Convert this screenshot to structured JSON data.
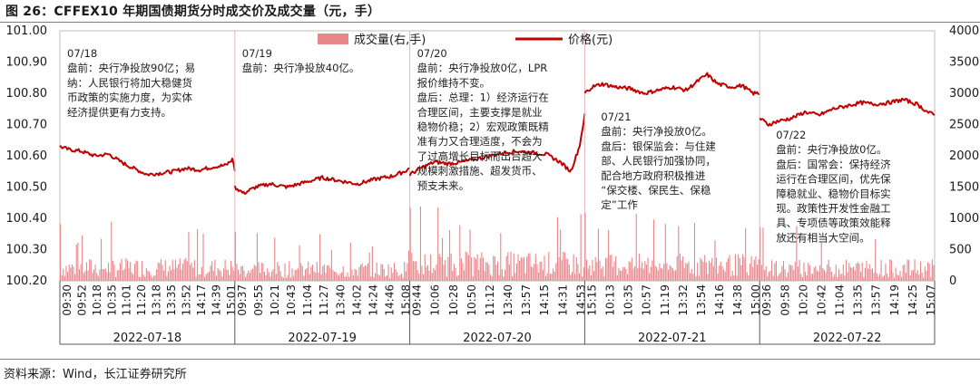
{
  "title": "图 26：CFFEX10 年期国债期货分时成交价及成交量（元，手）",
  "source": "资料来源：Wind，长江证券研究所",
  "colors": {
    "price": "#c00000",
    "volume": "#e8868a",
    "axis": "#595959"
  },
  "chart_data": {
    "type": "line+bar",
    "legend": {
      "position": "top-center",
      "items": [
        "成交量(右,手)",
        "价格(元)"
      ]
    },
    "left_axis": {
      "ticks": [
        "101.00",
        "100.90",
        "100.80",
        "100.70",
        "100.60",
        "100.50",
        "100.40",
        "100.30",
        "100.20"
      ],
      "range": [
        100.2,
        101.0
      ]
    },
    "right_axis": {
      "ticks": [
        "4000",
        "3500",
        "3000",
        "2500",
        "2000",
        "1500",
        "1000",
        "500",
        "0"
      ],
      "range": [
        0,
        4000
      ]
    },
    "days": [
      {
        "date": "2022-07-18",
        "times": [
          "09:30",
          "09:52",
          "10:18",
          "10:35",
          "11:01",
          "11:20",
          "13:18",
          "13:35",
          "13:52",
          "14:17",
          "14:39",
          "15:01"
        ],
        "price_points": [
          [
            0,
            100.63
          ],
          [
            0.05,
            100.62
          ],
          [
            0.12,
            100.615
          ],
          [
            0.2,
            100.6
          ],
          [
            0.28,
            100.605
          ],
          [
            0.35,
            100.58
          ],
          [
            0.42,
            100.56
          ],
          [
            0.5,
            100.54
          ],
          [
            0.58,
            100.545
          ],
          [
            0.65,
            100.55
          ],
          [
            0.72,
            100.56
          ],
          [
            0.8,
            100.555
          ],
          [
            0.88,
            100.565
          ],
          [
            0.95,
            100.57
          ],
          [
            0.99,
            100.59
          ],
          [
            1.0,
            100.55
          ]
        ],
        "volume_level": 350,
        "annotation": [
          "07/18",
          "盘前：央行净投放90亿；易",
          "纳：人民银行将加大稳健货",
          "币政策的实施力度，为实体",
          "经济提供更有力支持。"
        ]
      },
      {
        "date": "2022-07-19",
        "times": [
          "09:37",
          "09:55",
          "10:21",
          "10:43",
          "11:04",
          "11:27",
          "13:40",
          "14:02",
          "14:24",
          "14:46",
          "15:08"
        ],
        "price_points": [
          [
            0,
            100.5
          ],
          [
            0.05,
            100.48
          ],
          [
            0.12,
            100.5
          ],
          [
            0.2,
            100.51
          ],
          [
            0.3,
            100.5
          ],
          [
            0.4,
            100.515
          ],
          [
            0.5,
            100.53
          ],
          [
            0.6,
            100.52
          ],
          [
            0.7,
            100.51
          ],
          [
            0.8,
            100.525
          ],
          [
            0.9,
            100.535
          ],
          [
            0.97,
            100.55
          ],
          [
            1.0,
            100.56
          ]
        ],
        "volume_level": 300,
        "annotation": [
          "07/19",
          "盘前：央行净投放40亿。"
        ]
      },
      {
        "date": "2022-07-20",
        "times": [
          "09:44",
          "10:06",
          "10:28",
          "10:50",
          "11:12",
          "13:40",
          "13:57",
          "14:15",
          "14:31",
          "14:53"
        ],
        "price_points": [
          [
            0,
            100.54
          ],
          [
            0.06,
            100.56
          ],
          [
            0.14,
            100.58
          ],
          [
            0.22,
            100.575
          ],
          [
            0.3,
            100.58
          ],
          [
            0.38,
            100.59
          ],
          [
            0.46,
            100.6
          ],
          [
            0.54,
            100.61
          ],
          [
            0.62,
            100.615
          ],
          [
            0.7,
            100.61
          ],
          [
            0.78,
            100.605
          ],
          [
            0.86,
            100.58
          ],
          [
            0.92,
            100.55
          ],
          [
            0.97,
            100.63
          ],
          [
            1.0,
            100.73
          ]
        ],
        "volume_level": 450,
        "annotation": [
          "07/20",
          "盘前：央行净投放0亿，LPR",
          "报价维持不变。",
          "盘后：总理：1）经济运行在",
          "合理区间，主要支撑是就业",
          "稳物价稳；2）宏观政策既精",
          "准有力又合理适度，不会为",
          "了过高增长目标而出台超大",
          "规模刺激措施、超发货币、",
          "预支未来。"
        ]
      },
      {
        "date": "2022-07-21",
        "times": [
          "15:15",
          "10:13",
          "10:35",
          "10:57",
          "11:19",
          "13:32",
          "13:54",
          "14:16",
          "14:38",
          "15:00"
        ],
        "price_points": [
          [
            0,
            100.8
          ],
          [
            0.04,
            100.82
          ],
          [
            0.1,
            100.83
          ],
          [
            0.18,
            100.82
          ],
          [
            0.26,
            100.815
          ],
          [
            0.34,
            100.8
          ],
          [
            0.42,
            100.81
          ],
          [
            0.5,
            100.82
          ],
          [
            0.58,
            100.81
          ],
          [
            0.66,
            100.845
          ],
          [
            0.7,
            100.86
          ],
          [
            0.76,
            100.83
          ],
          [
            0.84,
            100.82
          ],
          [
            0.9,
            100.825
          ],
          [
            0.96,
            100.8
          ],
          [
            1.0,
            100.8
          ]
        ],
        "volume_level": 420,
        "annotation": [
          "07/21",
          "盘前：央行净投放0亿。",
          "盘后：银保监会：与住建",
          "部、人民银行加强协同，",
          "配合地方政府积极推进",
          "“保交楼、保民生、保稳",
          "定”工作"
        ]
      },
      {
        "date": "2022-07-22",
        "times": [
          "09:36",
          "09:58",
          "10:20",
          "10:42",
          "11:04",
          "13:35",
          "13:57",
          "14:19",
          "14:25",
          "15:07"
        ],
        "price_points": [
          [
            0,
            100.72
          ],
          [
            0.05,
            100.7
          ],
          [
            0.1,
            100.71
          ],
          [
            0.18,
            100.72
          ],
          [
            0.26,
            100.74
          ],
          [
            0.34,
            100.73
          ],
          [
            0.42,
            100.75
          ],
          [
            0.5,
            100.76
          ],
          [
            0.58,
            100.77
          ],
          [
            0.66,
            100.765
          ],
          [
            0.74,
            100.77
          ],
          [
            0.82,
            100.78
          ],
          [
            0.9,
            100.765
          ],
          [
            0.96,
            100.74
          ],
          [
            1.0,
            100.73
          ]
        ],
        "volume_level": 330,
        "annotation": [
          "07/22",
          "盘前：央行净投放0亿。",
          "盘后：国常会：保持经济",
          "运行在合理区间，优先保",
          "障稳就业、稳物价目标实",
          "现。政策性开发性金融工",
          "具、专项债等政策效能释",
          "放还有相当大空间。"
        ]
      }
    ]
  }
}
